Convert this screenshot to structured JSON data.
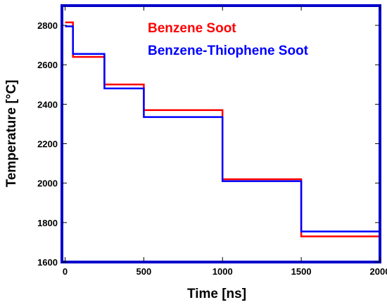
{
  "chart_data": {
    "type": "line",
    "xlabel": "Time [ns]",
    "ylabel": "Temperature [°C]",
    "xlim": [
      -20,
      2000
    ],
    "ylim": [
      1600,
      2900
    ],
    "x_ticks": [
      0,
      500,
      1000,
      1500,
      2000
    ],
    "y_ticks": [
      1600,
      1800,
      2000,
      2200,
      2400,
      2600,
      2800
    ],
    "grid": false,
    "legend_position": "top-right",
    "series": [
      {
        "name": "Benzene Soot",
        "color": "#ff0000",
        "x": [
          0,
          50,
          50,
          250,
          250,
          500,
          500,
          1000,
          1000,
          1500,
          1500,
          2000
        ],
        "y": [
          2815,
          2815,
          2640,
          2640,
          2500,
          2500,
          2370,
          2370,
          2020,
          2020,
          1730,
          1730
        ]
      },
      {
        "name": "Benzene-Thiophene Soot",
        "color": "#0000ff",
        "x": [
          0,
          50,
          50,
          250,
          250,
          500,
          500,
          1000,
          1000,
          1500,
          1500,
          2000
        ],
        "y": [
          2795,
          2795,
          2655,
          2655,
          2480,
          2480,
          2335,
          2335,
          2010,
          2010,
          1755,
          1755
        ]
      }
    ]
  }
}
